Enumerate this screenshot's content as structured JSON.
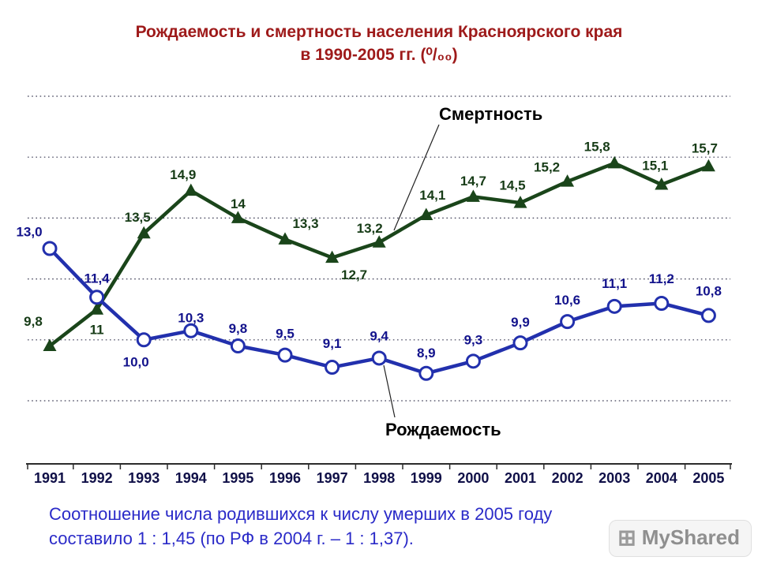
{
  "title": {
    "line1": "Рождаемость и смертность населения Красноярского края",
    "line2": "в 1990-2005 гг. (⁰/₀₀)"
  },
  "chart_data": {
    "type": "line",
    "title": "Рождаемость и смертность населения Красноярского края в 1990-2005 гг. (⁰/₀₀)",
    "xlabel": "",
    "ylabel": "",
    "categories": [
      "1991",
      "1992",
      "1993",
      "1994",
      "1995",
      "1996",
      "1997",
      "1998",
      "1999",
      "2000",
      "2001",
      "2002",
      "2003",
      "2004",
      "2005"
    ],
    "series": [
      {
        "name": "Смертность",
        "marker": "triangle",
        "color": "#1a451a",
        "label_color": "#173c17",
        "values": [
          9.8,
          11,
          13.5,
          14.9,
          14,
          13.3,
          12.7,
          13.2,
          14.1,
          14.7,
          14.5,
          15.2,
          15.8,
          15.1,
          15.7
        ],
        "labels": [
          "9,8",
          "11",
          "13,5",
          "14,9",
          "14",
          "13,3",
          "12,7",
          "13,2",
          "14,1",
          "14,7",
          "14,5",
          "15,2",
          "15,8",
          "15,1",
          "15,7"
        ],
        "label_offsets": [
          [
            -21,
            -31
          ],
          [
            0,
            26
          ],
          [
            -8,
            -20
          ],
          [
            -10,
            -20
          ],
          [
            0,
            -18
          ],
          [
            26,
            -20
          ],
          [
            28,
            22
          ],
          [
            -12,
            -18
          ],
          [
            8,
            -25
          ],
          [
            0,
            -20
          ],
          [
            -10,
            -22
          ],
          [
            -26,
            -18
          ],
          [
            -22,
            -21
          ],
          [
            -8,
            -24
          ],
          [
            -5,
            -23
          ]
        ]
      },
      {
        "name": "Рождаемость",
        "marker": "circle",
        "color": "#2230ad",
        "label_color": "#13138c",
        "values": [
          13.0,
          11.4,
          10.0,
          10.3,
          9.8,
          9.5,
          9.1,
          9.4,
          8.9,
          9.3,
          9.9,
          10.6,
          11.1,
          11.2,
          10.8
        ],
        "labels": [
          "13,0",
          "11,4",
          "10,0",
          "10,3",
          "9,8",
          "9,5",
          "9,1",
          "9,4",
          "8,9",
          "9,3",
          "9,9",
          "10,6",
          "11,1",
          "11,2",
          "10,8"
        ],
        "label_offsets": [
          [
            -26,
            -21
          ],
          [
            0,
            -24
          ],
          [
            -10,
            28
          ],
          [
            0,
            -16
          ],
          [
            0,
            -22
          ],
          [
            0,
            -27
          ],
          [
            0,
            -30
          ],
          [
            0,
            -28
          ],
          [
            0,
            -26
          ],
          [
            0,
            -27
          ],
          [
            0,
            -26
          ],
          [
            0,
            -27
          ],
          [
            0,
            -29
          ],
          [
            0,
            -31
          ],
          [
            0,
            -31
          ]
        ]
      }
    ],
    "ylim": [
      6,
      18.5
    ],
    "gridlines": [
      8,
      10,
      12,
      14,
      16,
      18
    ],
    "grid": "horizontal dotted",
    "legend": "inline text annotations with leader lines"
  },
  "footnote": {
    "line1": "Соотношение числа родившихся к числу умерших в 2005 году",
    "line2": "составило 1 : 1,45 (по РФ в 2004 г. – 1 : 1,37)."
  },
  "watermark": "MyShared",
  "colors": {
    "title": "#9e1a1a",
    "axis": "#2b2b2b",
    "grid": "#3c3c55",
    "year_label": "#101048",
    "footnote": "#2a2ac8",
    "watermark": "#8f8f8f",
    "callout_line": "#222222"
  }
}
